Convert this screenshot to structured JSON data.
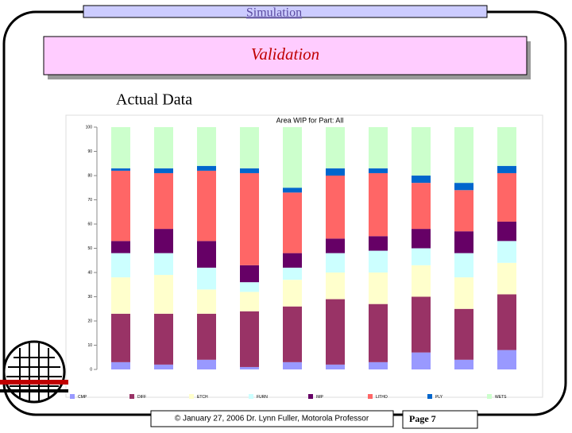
{
  "header": {
    "section": "Simulation",
    "title": "Validation",
    "subtitle": "Actual Data"
  },
  "footer": {
    "credit": "© January 27, 2006  Dr. Lynn Fuller, Motorola Professor",
    "page": "Page 7"
  },
  "chart_data": {
    "type": "stacked-bar",
    "title": "Area WIP for Part: All",
    "categories": [
      null,
      null,
      null,
      null,
      null,
      null,
      null,
      null,
      null,
      null
    ],
    "ylim": [
      0,
      100
    ],
    "yticks": [
      0,
      10,
      20,
      30,
      40,
      50,
      60,
      70,
      80,
      90,
      100
    ],
    "series": [
      {
        "name": "CMP",
        "color": "#9999ff",
        "values": [
          3,
          2,
          4,
          1,
          3,
          2,
          3,
          7,
          4,
          8
        ]
      },
      {
        "name": "DIFF",
        "color": "#993366",
        "values": [
          20,
          21,
          19,
          23,
          23,
          27,
          24,
          23,
          21,
          23
        ]
      },
      {
        "name": "ETCH",
        "color": "#ffffcc",
        "values": [
          15,
          16,
          10,
          8,
          11,
          11,
          13,
          13,
          13,
          13
        ]
      },
      {
        "name": "FURN",
        "color": "#ccffff",
        "values": [
          10,
          9,
          9,
          4,
          5,
          8,
          9,
          7,
          10,
          9
        ]
      },
      {
        "name": "IMP",
        "color": "#660066",
        "values": [
          5,
          10,
          11,
          7,
          6,
          6,
          6,
          8,
          9,
          8
        ]
      },
      {
        "name": "LITHO",
        "color": "#ff6666",
        "values": [
          29,
          23,
          29,
          38,
          25,
          26,
          26,
          19,
          17,
          20
        ]
      },
      {
        "name": "PLY",
        "color": "#0066cc",
        "values": [
          1,
          2,
          2,
          2,
          2,
          3,
          2,
          3,
          3,
          3
        ]
      },
      {
        "name": "WETS",
        "color": "#ccffcc",
        "values": [
          17,
          17,
          16,
          17,
          25,
          17,
          17,
          20,
          23,
          16
        ]
      }
    ]
  }
}
